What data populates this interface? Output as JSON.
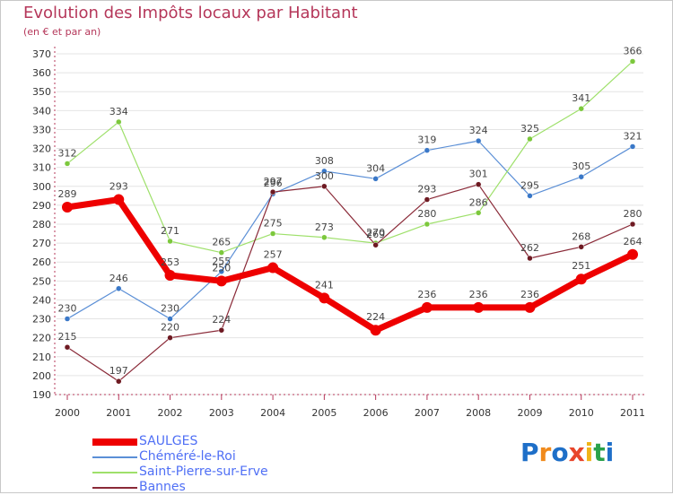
{
  "title": "Evolution des Impôts locaux par Habitant",
  "subtitle": "(en € et par an)",
  "colors": {
    "title": "#b5375a",
    "axis": "#b5375a",
    "grid": "#e4e4e4",
    "legend_text": "#4f6ff5"
  },
  "logo": {
    "letters": [
      "P",
      "r",
      "o",
      "x",
      "i",
      "t",
      "i"
    ],
    "colors": [
      "#1e6fc8",
      "#f08a1c",
      "#1e6fc8",
      "#e8452a",
      "#f0b418",
      "#2aa14a",
      "#1e6fc8"
    ]
  },
  "chart_data": {
    "type": "line",
    "title": "Evolution des Impôts locaux par Habitant",
    "subtitle": "(en € et par an)",
    "xlabel": "",
    "ylabel": "",
    "categories": [
      "2000",
      "2001",
      "2002",
      "2003",
      "2004",
      "2005",
      "2006",
      "2007",
      "2008",
      "2009",
      "2010",
      "2011"
    ],
    "ylim": [
      190,
      370
    ],
    "yticks": [
      190,
      200,
      210,
      220,
      230,
      240,
      250,
      260,
      270,
      280,
      290,
      300,
      310,
      320,
      330,
      340,
      350,
      360,
      370
    ],
    "grid": true,
    "legend_position": "bottom-left",
    "series": [
      {
        "name": "Chéméré-le-Roi",
        "color": "#5b8fd6",
        "dot": "#3a78c8",
        "width": 1.2,
        "values": [
          230,
          246,
          230,
          255,
          296,
          308,
          304,
          319,
          324,
          295,
          305,
          321
        ]
      },
      {
        "name": "Saint-Pierre-sur-Erve",
        "color": "#9ee06a",
        "dot": "#7cc83c",
        "width": 1.2,
        "values": [
          312,
          334,
          271,
          265,
          275,
          273,
          270,
          280,
          286,
          325,
          341,
          366
        ]
      },
      {
        "name": "Bannes",
        "color": "#8a2a38",
        "dot": "#6e1a22",
        "width": 1.2,
        "values": [
          215,
          197,
          220,
          224,
          297,
          300,
          269,
          293,
          301,
          262,
          268,
          280
        ]
      },
      {
        "name": "SAULGES",
        "color": "#ee0000",
        "dot": "#ee0000",
        "width": 7,
        "values": [
          289,
          293,
          253,
          250,
          257,
          241,
          224,
          236,
          236,
          236,
          251,
          264
        ]
      }
    ],
    "legend_order": [
      "SAULGES",
      "Chéméré-le-Roi",
      "Saint-Pierre-sur-Erve",
      "Bannes"
    ]
  }
}
